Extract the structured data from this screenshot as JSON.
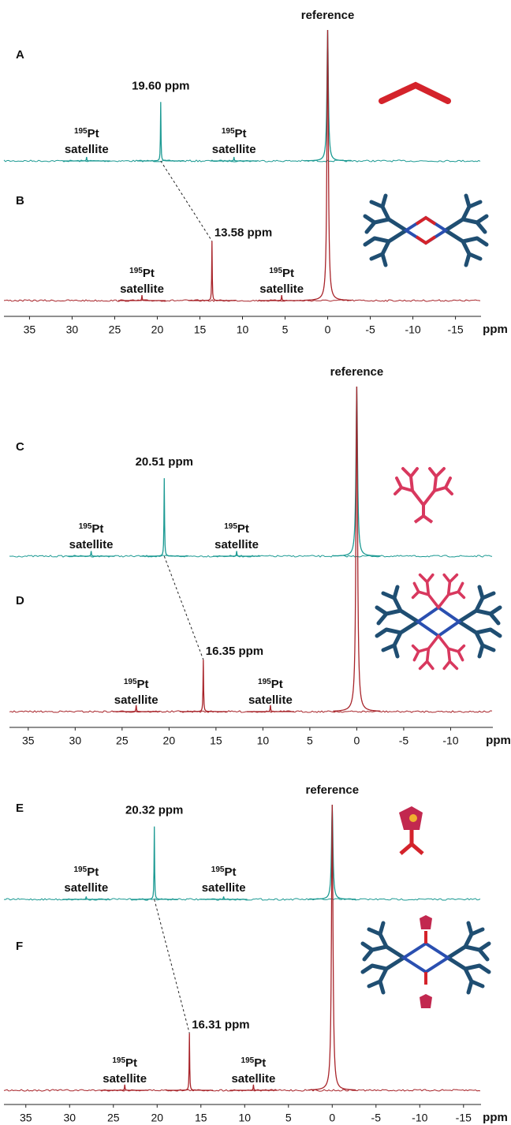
{
  "chart_data": [
    {
      "type": "spectrum",
      "reference_label": "reference",
      "x_label": "ppm",
      "xlim": [
        38,
        -18
      ],
      "xticks": [
        35,
        30,
        25,
        20,
        15,
        10,
        5,
        0,
        -5,
        -10,
        -15
      ],
      "series": [
        {
          "name": "A",
          "color": "#1c9a93",
          "peak_x": [
            19.6,
            28.3,
            11.0,
            0
          ],
          "values": [
            45,
            3,
            3,
            100
          ],
          "peak_label": "19.60 ppm",
          "satellite_label": {
            "isotope": "195",
            "element": "Pt",
            "text": "satellite"
          }
        },
        {
          "name": "B",
          "color": "#a8242a",
          "peak_x": [
            13.58,
            21.8,
            5.4,
            0
          ],
          "values": [
            22,
            2,
            2,
            100
          ],
          "peak_label": "13.58 ppm",
          "satellite_label": {
            "isotope": "195",
            "element": "Pt",
            "text": "satellite"
          }
        }
      ]
    },
    {
      "type": "spectrum",
      "reference_label": "reference",
      "x_label": "ppm",
      "xlim": [
        37,
        -14.5
      ],
      "xticks": [
        35,
        30,
        25,
        20,
        15,
        10,
        5,
        0,
        -5,
        -10
      ],
      "series": [
        {
          "name": "C",
          "color": "#1c9a93",
          "peak_x": [
            20.51,
            28.3,
            12.8,
            0
          ],
          "values": [
            46,
            3,
            3,
            100
          ],
          "peak_label": "20.51 ppm",
          "satellite_label": {
            "isotope": "195",
            "element": "Pt",
            "text": "satellite"
          }
        },
        {
          "name": "D",
          "color": "#a8242a",
          "peak_x": [
            16.35,
            23.5,
            9.2,
            0
          ],
          "values": [
            16,
            2,
            2,
            100
          ],
          "peak_label": "16.35 ppm",
          "satellite_label": {
            "isotope": "195",
            "element": "Pt",
            "text": "satellite"
          }
        }
      ]
    },
    {
      "type": "spectrum",
      "reference_label": "reference",
      "x_label": "ppm",
      "xlim": [
        37.5,
        -17
      ],
      "xticks": [
        35,
        30,
        25,
        20,
        15,
        10,
        5,
        0,
        -5,
        -10,
        -15
      ],
      "series": [
        {
          "name": "E",
          "color": "#1c9a93",
          "peak_x": [
            20.32,
            28.1,
            12.4,
            0
          ],
          "values": [
            77,
            3,
            3,
            100
          ],
          "peak_label": "20.32 ppm",
          "satellite_label": {
            "isotope": "195",
            "element": "Pt",
            "text": "satellite"
          }
        },
        {
          "name": "F",
          "color": "#a8242a",
          "peak_x": [
            16.31,
            23.7,
            9.0,
            0
          ],
          "values": [
            20,
            2,
            2,
            100
          ],
          "peak_label": "16.31 ppm",
          "satellite_label": {
            "isotope": "195",
            "element": "Pt",
            "text": "satellite"
          }
        }
      ]
    }
  ]
}
